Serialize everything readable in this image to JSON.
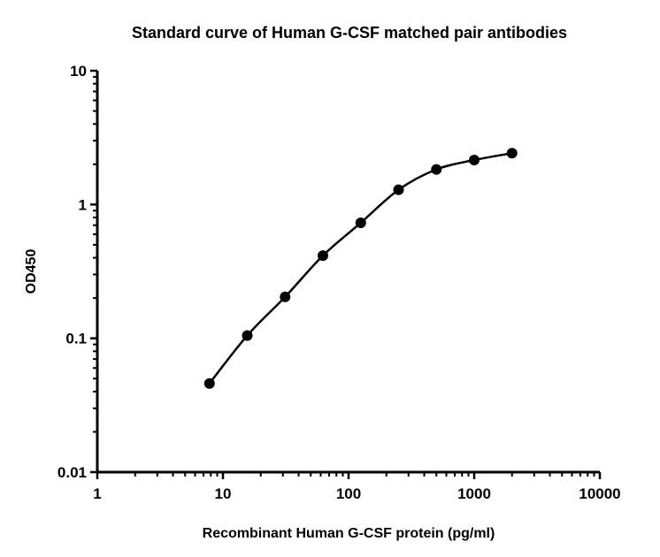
{
  "chart_data": {
    "type": "scatter",
    "title": "Standard curve of Human G-CSF matched pair antibodies",
    "xlabel": "Recombinant Human G-CSF protein (pg/ml)",
    "ylabel": "OD450",
    "xscale": "log",
    "yscale": "log",
    "xlim": [
      1,
      10000
    ],
    "ylim": [
      0.01,
      10
    ],
    "xticks": [
      "1",
      "10",
      "100",
      "1000",
      "10000"
    ],
    "yticks": [
      "0.01",
      "0.1",
      "1",
      "10"
    ],
    "grid": false,
    "fit_curve": true,
    "x": [
      7.8125,
      15.625,
      31.25,
      62.5,
      125,
      250,
      500,
      1000,
      2000
    ],
    "y": [
      0.046,
      0.105,
      0.204,
      0.415,
      0.73,
      1.29,
      1.83,
      2.15,
      2.42
    ],
    "color": "#000000"
  }
}
